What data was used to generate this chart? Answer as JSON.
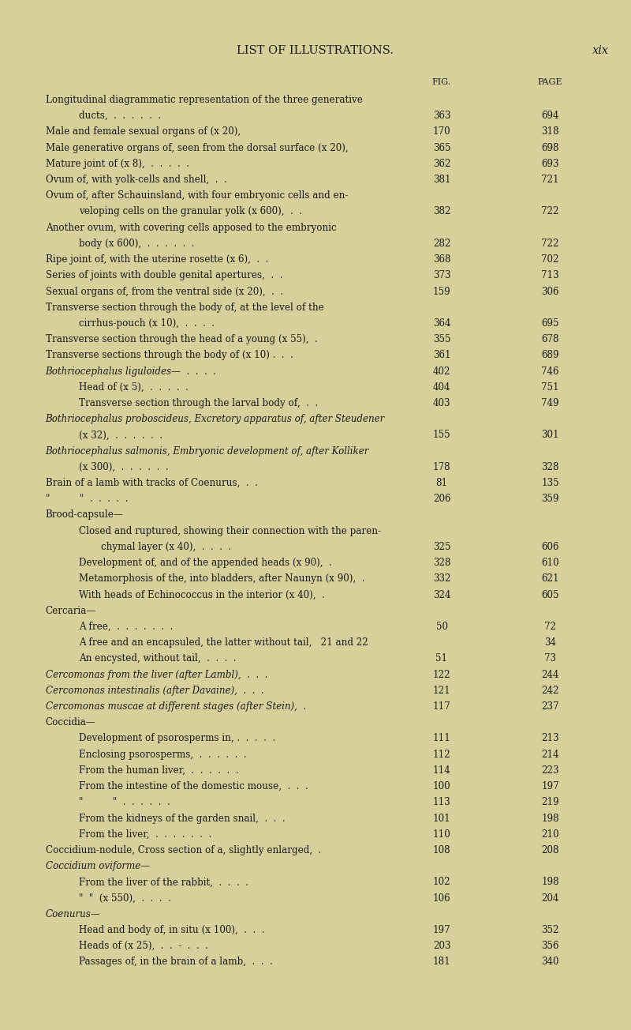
{
  "bg_color": "#d8d09a",
  "title_left": "LIST OF ILLUSTRATIONS.",
  "title_right": "xix",
  "col_fig": "FIG.",
  "col_page": "PAGE",
  "entries": [
    {
      "text": "Longitudinal diagrammatic representation of the three generative",
      "indent": 0,
      "fig": "",
      "page": "",
      "style": "normal"
    },
    {
      "text": "ducts,  .  .  .  .  .  .",
      "indent": 1,
      "fig": "363",
      "page": "694",
      "style": "normal"
    },
    {
      "text": "Male and female sexual organs of (x 20),",
      "indent": 0,
      "fig": "170",
      "page": "318",
      "style": "normal"
    },
    {
      "text": "Male generative organs of, seen from the dorsal surface (x 20),",
      "indent": 0,
      "fig": "365",
      "page": "698",
      "style": "normal"
    },
    {
      "text": "Mature joint of (x 8),  .  .  .  .  .",
      "indent": 0,
      "fig": "362",
      "page": "693",
      "style": "normal"
    },
    {
      "text": "Ovum of, with yolk-cells and shell,  .  .",
      "indent": 0,
      "fig": "381",
      "page": "721",
      "style": "normal"
    },
    {
      "text": "Ovum of, after Schauinsland, with four embryonic cells and en-",
      "indent": 0,
      "fig": "",
      "page": "",
      "style": "normal"
    },
    {
      "text": "veloping cells on the granular yolk (x 600),  .  .",
      "indent": 1,
      "fig": "382",
      "page": "722",
      "style": "normal"
    },
    {
      "text": "Another ovum, with covering cells apposed to the embryonic",
      "indent": 0,
      "fig": "",
      "page": "",
      "style": "normal"
    },
    {
      "text": "body (x 600),  .  .  .  .  .  .",
      "indent": 1,
      "fig": "282",
      "page": "722",
      "style": "normal"
    },
    {
      "text": "Ripe joint of, with the uterine rosette (x 6),  .  .",
      "indent": 0,
      "fig": "368",
      "page": "702",
      "style": "normal"
    },
    {
      "text": "Series of joints with double genital apertures,  .  .",
      "indent": 0,
      "fig": "373",
      "page": "713",
      "style": "normal"
    },
    {
      "text": "Sexual organs of, from the ventral side (x 20),  .  .",
      "indent": 0,
      "fig": "159",
      "page": "306",
      "style": "normal"
    },
    {
      "text": "Transverse section through the body of, at the level of the",
      "indent": 0,
      "fig": "",
      "page": "",
      "style": "normal"
    },
    {
      "text": "cirrhus-pouch (x 10),  .  .  .  .",
      "indent": 1,
      "fig": "364",
      "page": "695",
      "style": "normal"
    },
    {
      "text": "Transverse section through the head of a young (x 55),  .",
      "indent": 0,
      "fig": "355",
      "page": "678",
      "style": "normal"
    },
    {
      "text": "Transverse sections through the body of (x 10) .  .  .",
      "indent": 0,
      "fig": "361",
      "page": "689",
      "style": "normal"
    },
    {
      "text": "Bothriocephalus liguloides—  .  .  .  .",
      "indent": 0,
      "fig": "402",
      "page": "746",
      "style": "italic"
    },
    {
      "text": "Head of (x 5),  .  .  .  .  .",
      "indent": 1,
      "fig": "404",
      "page": "751",
      "style": "normal"
    },
    {
      "text": "Transverse section through the larval body of,  .  .",
      "indent": 1,
      "fig": "403",
      "page": "749",
      "style": "normal"
    },
    {
      "text": "Bothriocephalus proboscideus, Excretory apparatus of, after Steudener",
      "indent": 0,
      "fig": "",
      "page": "",
      "style": "italic"
    },
    {
      "text": "(x 32),  .  .  .  .  .  .",
      "indent": 1,
      "fig": "155",
      "page": "301",
      "style": "normal"
    },
    {
      "text": "Bothriocephalus salmonis, Embryonic development of, after Kolliker",
      "indent": 0,
      "fig": "",
      "page": "",
      "style": "italic"
    },
    {
      "text": "(x 300),  .  .  .  .  .  .",
      "indent": 1,
      "fig": "178",
      "page": "328",
      "style": "normal"
    },
    {
      "text": "Brain of a lamb with tracks of Coenurus,  .  .",
      "indent": 0,
      "fig": "81",
      "page": "135",
      "style": "normal"
    },
    {
      "text": "\"          \"  .  .  .  .  .",
      "indent": 0,
      "fig": "206",
      "page": "359",
      "style": "normal"
    },
    {
      "text": "Brood-capsule—",
      "indent": 0,
      "fig": "",
      "page": "",
      "style": "normal"
    },
    {
      "text": "Closed and ruptured, showing their connection with the paren-",
      "indent": 1,
      "fig": "",
      "page": "",
      "style": "normal"
    },
    {
      "text": "chymal layer (x 40),  .  .  .  .",
      "indent": 2,
      "fig": "325",
      "page": "606",
      "style": "normal"
    },
    {
      "text": "Development of, and of the appended heads (x 90),  .",
      "indent": 1,
      "fig": "328",
      "page": "610",
      "style": "normal"
    },
    {
      "text": "Metamorphosis of the, into bladders, after Naunyn (x 90),  .",
      "indent": 1,
      "fig": "332",
      "page": "621",
      "style": "normal"
    },
    {
      "text": "With heads of Echinococcus in the interior (x 40),  .",
      "indent": 1,
      "fig": "324",
      "page": "605",
      "style": "normal"
    },
    {
      "text": "Cercaria—",
      "indent": 0,
      "fig": "",
      "page": "",
      "style": "normal"
    },
    {
      "text": "A free,  .  .  .  .  .  .  .",
      "indent": 1,
      "fig": "50",
      "page": "72",
      "style": "normal"
    },
    {
      "text": "A free and an encapsuled, the latter without tail,   21 and 22",
      "indent": 1,
      "fig": "",
      "page": "34",
      "style": "normal"
    },
    {
      "text": "An encysted, without tail,  .  .  .  .",
      "indent": 1,
      "fig": "51",
      "page": "73",
      "style": "normal"
    },
    {
      "text": "Cercomonas from the liver (after Lambl),  .  .  .",
      "indent": 0,
      "fig": "122",
      "page": "244",
      "style": "italic"
    },
    {
      "text": "Cercomonas intestinalis (after Davaine),  .  .  .",
      "indent": 0,
      "fig": "121",
      "page": "242",
      "style": "italic"
    },
    {
      "text": "Cercomonas muscae at different stages (after Stein),  .",
      "indent": 0,
      "fig": "117",
      "page": "237",
      "style": "italic"
    },
    {
      "text": "Coccidia—",
      "indent": 0,
      "fig": "",
      "page": "",
      "style": "normal"
    },
    {
      "text": "Development of psorosperms in, .  .  .  .  .",
      "indent": 1,
      "fig": "111",
      "page": "213",
      "style": "normal"
    },
    {
      "text": "Enclosing psorosperms,  .  .  .  .  .  .",
      "indent": 1,
      "fig": "112",
      "page": "214",
      "style": "normal"
    },
    {
      "text": "From the human liver,  .  .  .  .  .  .",
      "indent": 1,
      "fig": "114",
      "page": "223",
      "style": "normal"
    },
    {
      "text": "From the intestine of the domestic mouse,  .  .  .",
      "indent": 1,
      "fig": "100",
      "page": "197",
      "style": "normal"
    },
    {
      "text": "\"          \"  .  .  .  .  .  .",
      "indent": 1,
      "fig": "113",
      "page": "219",
      "style": "normal"
    },
    {
      "text": "From the kidneys of the garden snail,  .  .  .",
      "indent": 1,
      "fig": "101",
      "page": "198",
      "style": "normal"
    },
    {
      "text": "From the liver,  .  .  .  .  .  .  .",
      "indent": 1,
      "fig": "110",
      "page": "210",
      "style": "normal"
    },
    {
      "text": "Coccidium-nodule, Cross section of a, slightly enlarged,  .",
      "indent": 0,
      "fig": "108",
      "page": "208",
      "style": "normal"
    },
    {
      "text": "Coccidium oviforme—",
      "indent": 0,
      "fig": "",
      "page": "",
      "style": "italic"
    },
    {
      "text": "From the liver of the rabbit,  .  .  .  .",
      "indent": 1,
      "fig": "102",
      "page": "198",
      "style": "normal"
    },
    {
      "text": "\"  \"  (x 550),  .  .  .  .",
      "indent": 1,
      "fig": "106",
      "page": "204",
      "style": "normal"
    },
    {
      "text": "Coenurus—",
      "indent": 0,
      "fig": "",
      "page": "",
      "style": "italic"
    },
    {
      "text": "Head and body of, in situ (x 100),  .  .  .",
      "indent": 1,
      "fig": "197",
      "page": "352",
      "style": "normal"
    },
    {
      "text": "Heads of (x 25),  .  .  -  .  .  .",
      "indent": 1,
      "fig": "203",
      "page": "356",
      "style": "normal"
    },
    {
      "text": "Passages of, in the brain of a lamb,  .  .  .",
      "indent": 1,
      "fig": "181",
      "page": "340",
      "style": "normal"
    }
  ]
}
